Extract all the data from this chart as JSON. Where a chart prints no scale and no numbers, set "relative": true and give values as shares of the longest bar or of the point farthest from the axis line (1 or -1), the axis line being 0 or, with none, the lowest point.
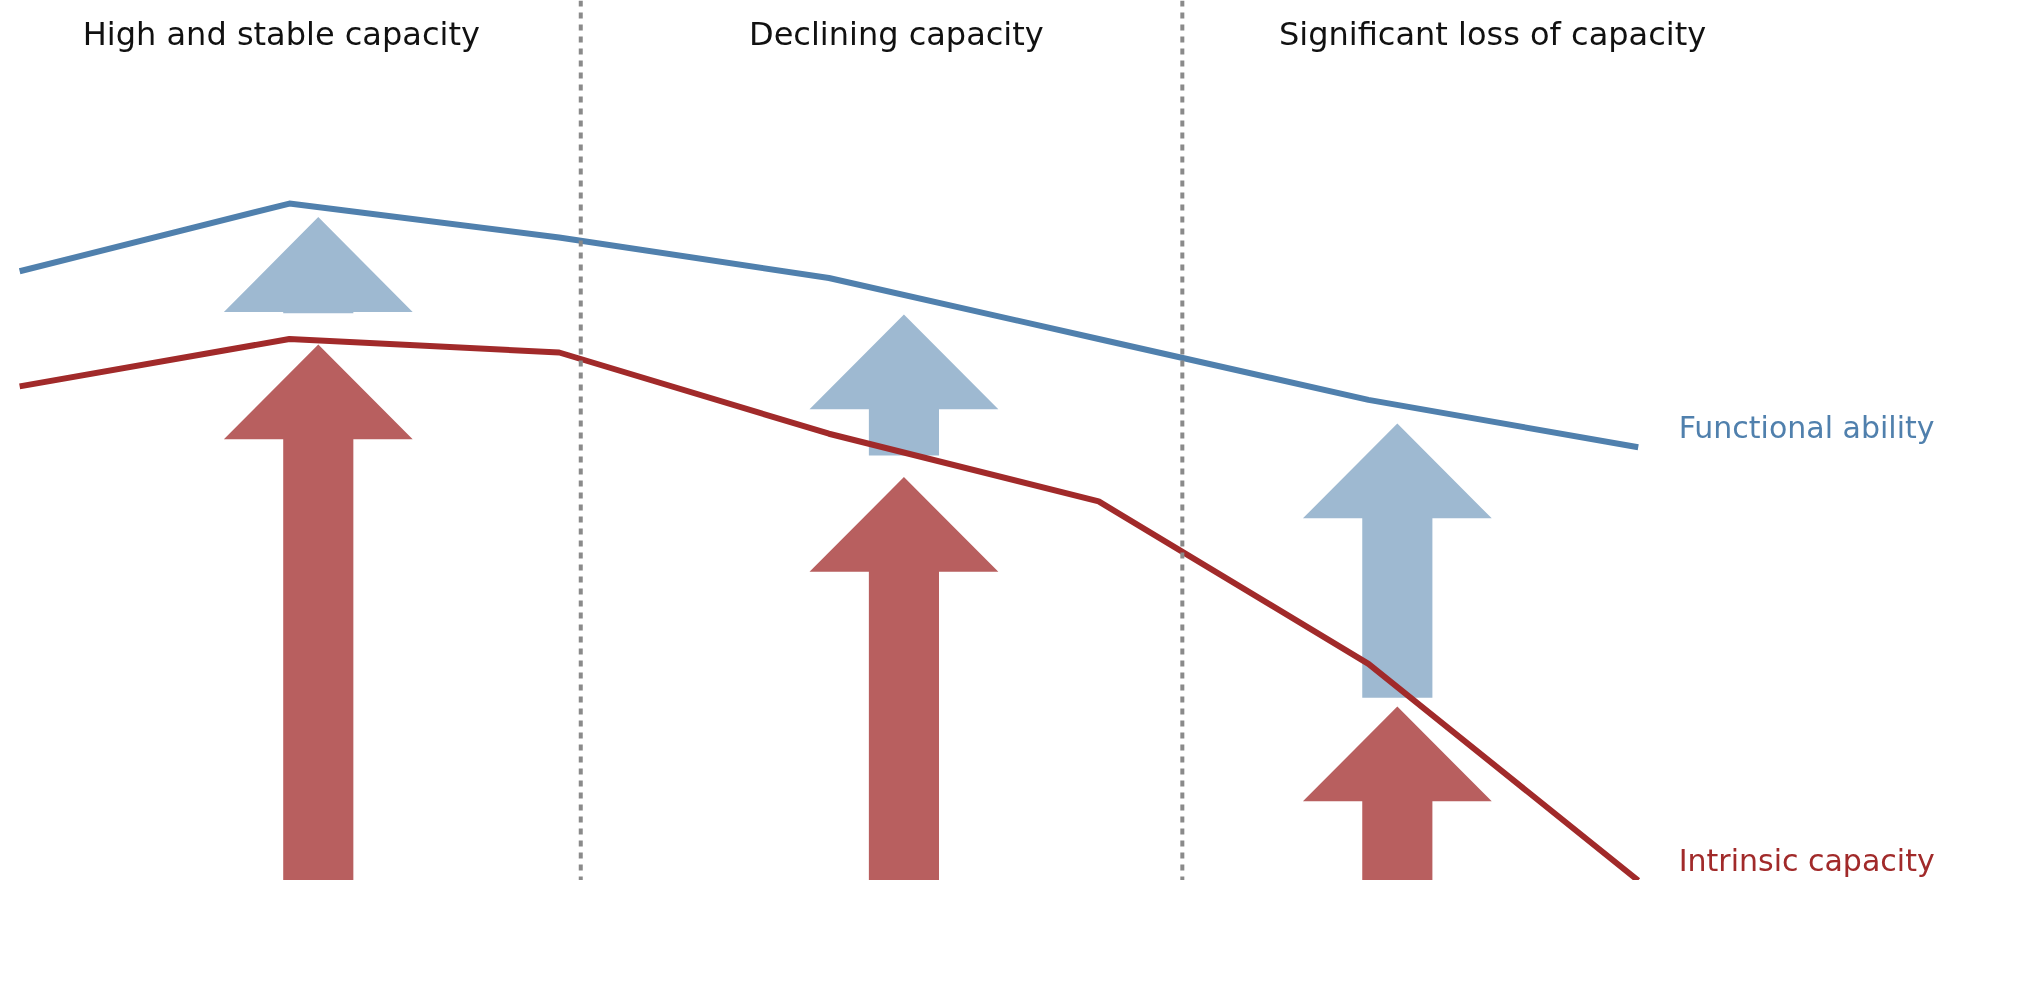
{
  "chart_data": {
    "type": "line",
    "relative": true,
    "categories": [
      null,
      null,
      null,
      null,
      null,
      null,
      null
    ],
    "series": [
      {
        "name": "Functional ability",
        "color": "#5080ad",
        "values": [
          0.9,
          1,
          0.95,
          0.89,
          0.8,
          0.71,
          0.64
        ]
      },
      {
        "name": "Intrinsic capacity",
        "color": "#a12a2a",
        "values": [
          0.73,
          0.8,
          0.78,
          0.66,
          0.56,
          0.32,
          0
        ]
      }
    ],
    "annotations": [
      "High and stable capacity",
      "Declining capacity",
      "Significant loss of capacity"
    ],
    "legend": false,
    "grid": false,
    "tick_labels": false,
    "marker": "none",
    "line_style": "solid"
  }
}
